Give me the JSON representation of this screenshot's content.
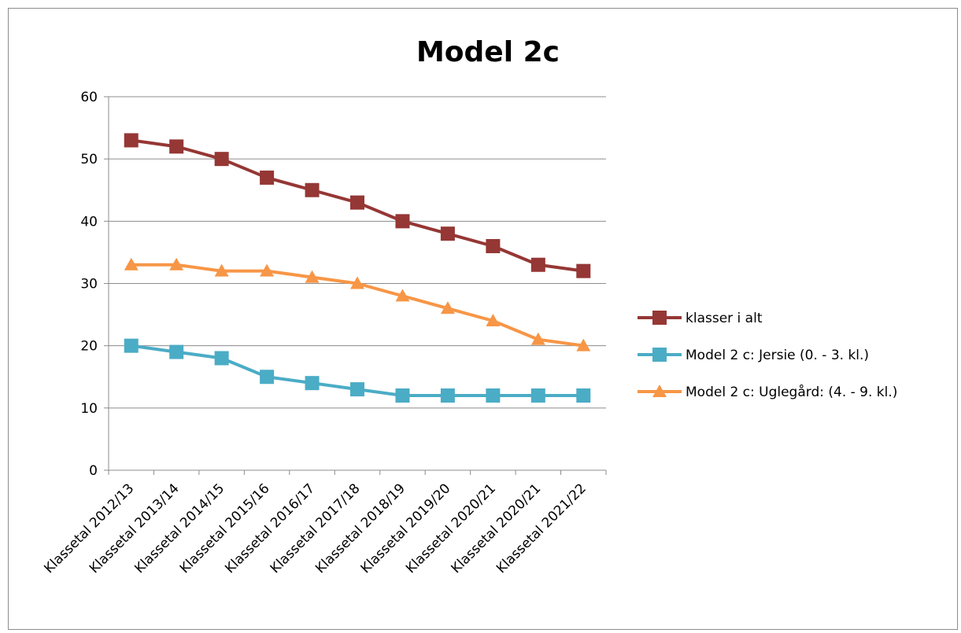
{
  "chart_data": {
    "type": "line",
    "title": "Model 2c",
    "xlabel": "",
    "ylabel": "",
    "ylim": [
      0,
      60
    ],
    "yticks": [
      "0",
      "10",
      "20",
      "30",
      "40",
      "50",
      "60"
    ],
    "grid": true,
    "legend_position": "right",
    "categories": [
      "Klassetal 2012/13",
      "Klassetal 2013/14",
      "Klassetal 2014/15",
      "Klassetal 2015/16",
      "Klassetal 2016/17",
      "Klassetal 2017/18",
      "Klassetal 2018/19",
      "Klassetal 2019/20",
      "Klassetal 2020/21",
      "Klassetal 2020/21",
      "Klassetal 2021/22"
    ],
    "series": [
      {
        "name": "klasser i alt",
        "color": "#953735",
        "marker": "square",
        "values": [
          53,
          52,
          50,
          47,
          45,
          43,
          40,
          38,
          36,
          33,
          32
        ]
      },
      {
        "name": "Model 2 c: Jersie (0. - 3. kl.)",
        "color": "#4bacc6",
        "marker": "square",
        "values": [
          20,
          19,
          18,
          15,
          14,
          13,
          12,
          12,
          12,
          12,
          12
        ]
      },
      {
        "name": "Model 2 c: Uglegård: (4. - 9. kl.)",
        "color": "#f79646",
        "marker": "triangle",
        "values": [
          33,
          33,
          32,
          32,
          31,
          30,
          28,
          26,
          24,
          21,
          20
        ]
      }
    ]
  }
}
